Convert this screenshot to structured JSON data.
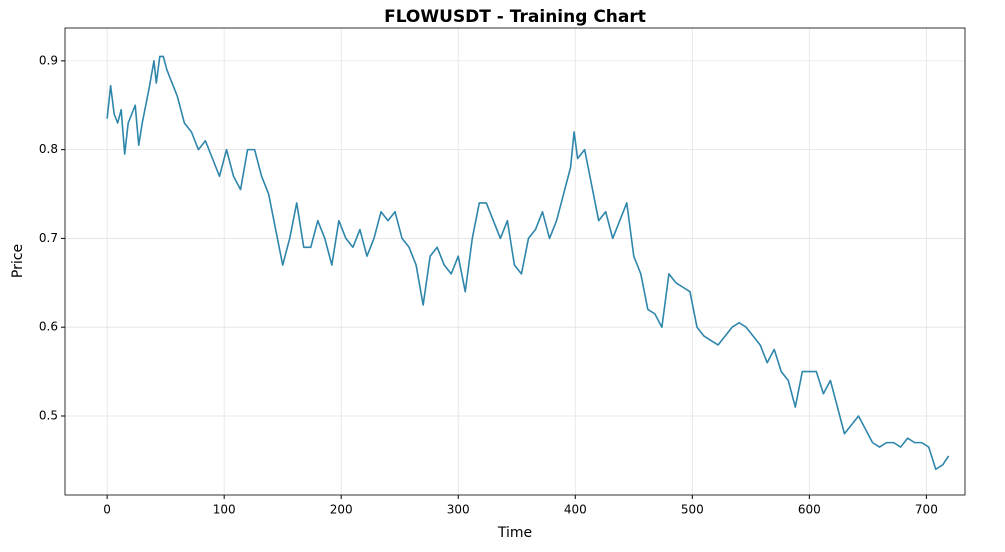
{
  "chart_data": {
    "type": "line",
    "title": "FLOWUSDT - Training Chart",
    "xlabel": "Time",
    "ylabel": "Price",
    "x": [
      0,
      3,
      6,
      9,
      12,
      15,
      18,
      24,
      27,
      30,
      36,
      40,
      42,
      45,
      48,
      51,
      54,
      57,
      60,
      63,
      66,
      72,
      78,
      84,
      90,
      96,
      102,
      108,
      114,
      120,
      126,
      132,
      138,
      144,
      150,
      156,
      162,
      168,
      174,
      180,
      186,
      192,
      198,
      204,
      210,
      216,
      222,
      228,
      234,
      240,
      246,
      252,
      258,
      264,
      270,
      276,
      282,
      288,
      294,
      300,
      306,
      312,
      318,
      324,
      330,
      336,
      342,
      348,
      354,
      360,
      366,
      372,
      378,
      384,
      390,
      396,
      399,
      402,
      408,
      414,
      420,
      426,
      432,
      438,
      444,
      450,
      456,
      462,
      468,
      474,
      480,
      486,
      492,
      498,
      504,
      510,
      516,
      522,
      528,
      534,
      540,
      546,
      552,
      558,
      564,
      570,
      576,
      582,
      588,
      594,
      600,
      606,
      612,
      618,
      624,
      630,
      636,
      642,
      648,
      654,
      660,
      666,
      672,
      678,
      684,
      690,
      696,
      702,
      708,
      714,
      719
    ],
    "series": [
      {
        "name": "Price",
        "color": "#2e86ab",
        "values": [
          0.835,
          0.872,
          0.84,
          0.83,
          0.845,
          0.795,
          0.83,
          0.85,
          0.805,
          0.83,
          0.87,
          0.9,
          0.875,
          0.905,
          0.905,
          0.89,
          0.88,
          0.87,
          0.86,
          0.845,
          0.83,
          0.82,
          0.8,
          0.81,
          0.79,
          0.77,
          0.8,
          0.77,
          0.755,
          0.8,
          0.8,
          0.77,
          0.75,
          0.71,
          0.67,
          0.7,
          0.74,
          0.69,
          0.69,
          0.72,
          0.7,
          0.67,
          0.72,
          0.7,
          0.69,
          0.71,
          0.68,
          0.7,
          0.73,
          0.72,
          0.73,
          0.7,
          0.69,
          0.67,
          0.625,
          0.68,
          0.69,
          0.67,
          0.66,
          0.68,
          0.64,
          0.7,
          0.74,
          0.74,
          0.72,
          0.7,
          0.72,
          0.67,
          0.66,
          0.7,
          0.71,
          0.73,
          0.7,
          0.72,
          0.75,
          0.78,
          0.82,
          0.79,
          0.8,
          0.76,
          0.72,
          0.73,
          0.7,
          0.72,
          0.74,
          0.68,
          0.66,
          0.62,
          0.615,
          0.6,
          0.66,
          0.65,
          0.645,
          0.64,
          0.6,
          0.59,
          0.585,
          0.58,
          0.59,
          0.6,
          0.605,
          0.6,
          0.59,
          0.58,
          0.56,
          0.575,
          0.55,
          0.54,
          0.51,
          0.55,
          0.55,
          0.55,
          0.525,
          0.54,
          0.51,
          0.48,
          0.49,
          0.5,
          0.485,
          0.47,
          0.465,
          0.47,
          0.47,
          0.465,
          0.475,
          0.47,
          0.47,
          0.465,
          0.44,
          0.445,
          0.455
        ]
      }
    ],
    "xlim": [
      -36,
      733
    ],
    "ylim": [
      0.411,
      0.937
    ],
    "xticks": [
      0,
      100,
      200,
      300,
      400,
      500,
      600,
      700
    ],
    "yticks": [
      0.5,
      0.6,
      0.7,
      0.8,
      0.9
    ],
    "grid": true
  }
}
